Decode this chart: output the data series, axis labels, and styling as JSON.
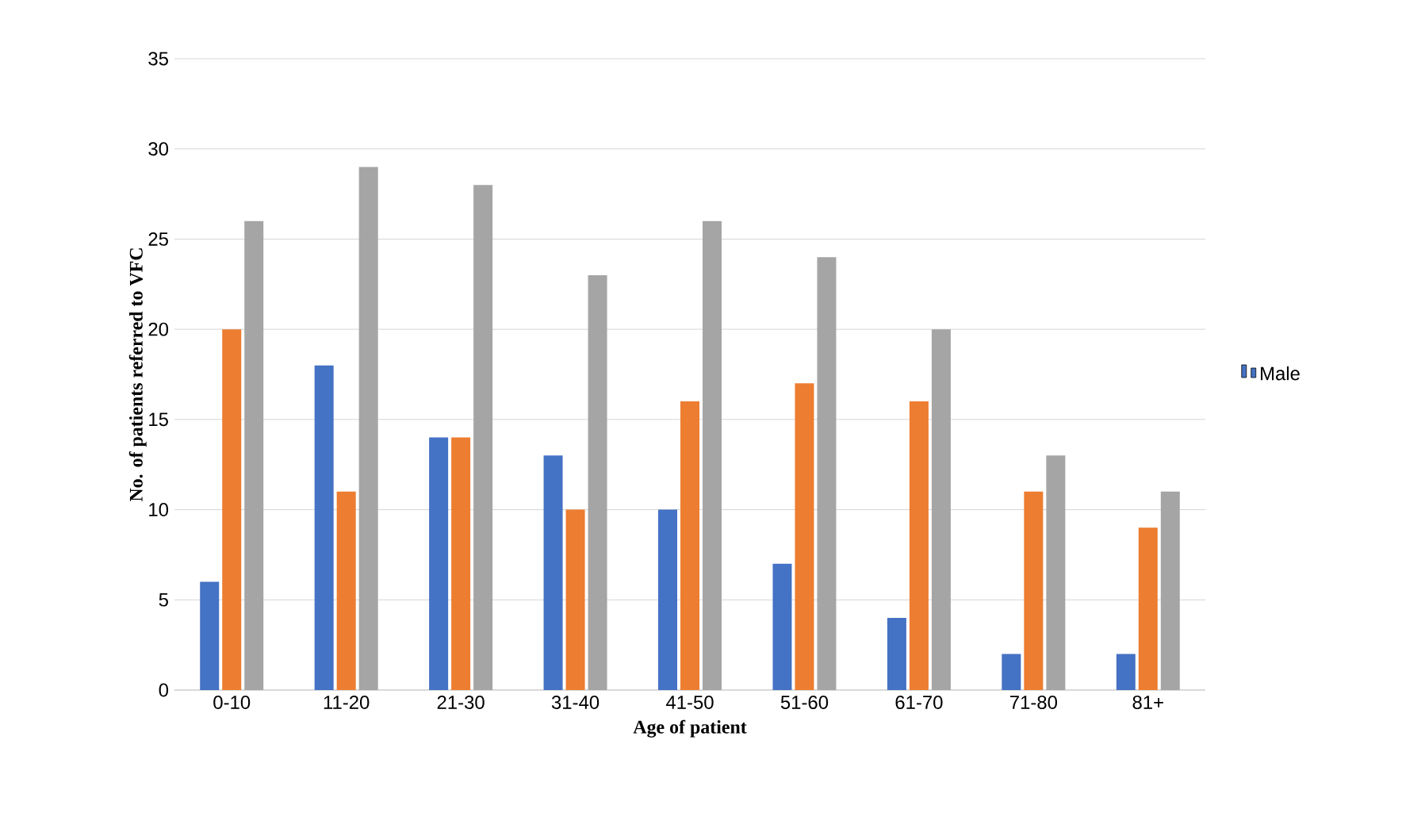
{
  "chart_data": {
    "type": "bar",
    "xlabel": "Age of patient",
    "ylabel": "No. of patients referred to VFC",
    "categories": [
      "0-10",
      "11-20",
      "21-30",
      "31-40",
      "41-50",
      "51-60",
      "61-70",
      "71-80",
      "81+"
    ],
    "series": [
      {
        "name": "Male",
        "color": "#4472c4",
        "values": [
          6,
          18,
          14,
          13,
          10,
          7,
          4,
          2,
          2
        ]
      },
      {
        "color": "#ed7d31",
        "values": [
          20,
          11,
          14,
          10,
          16,
          17,
          16,
          11,
          9
        ]
      },
      {
        "color": "#a5a5a5",
        "values": [
          26,
          29,
          28,
          23,
          26,
          24,
          20,
          13,
          11
        ]
      }
    ],
    "ylim": [
      0,
      35
    ],
    "yticks": [
      0,
      5,
      10,
      15,
      20,
      25,
      30,
      35
    ],
    "grid": "y",
    "legend": "right"
  }
}
